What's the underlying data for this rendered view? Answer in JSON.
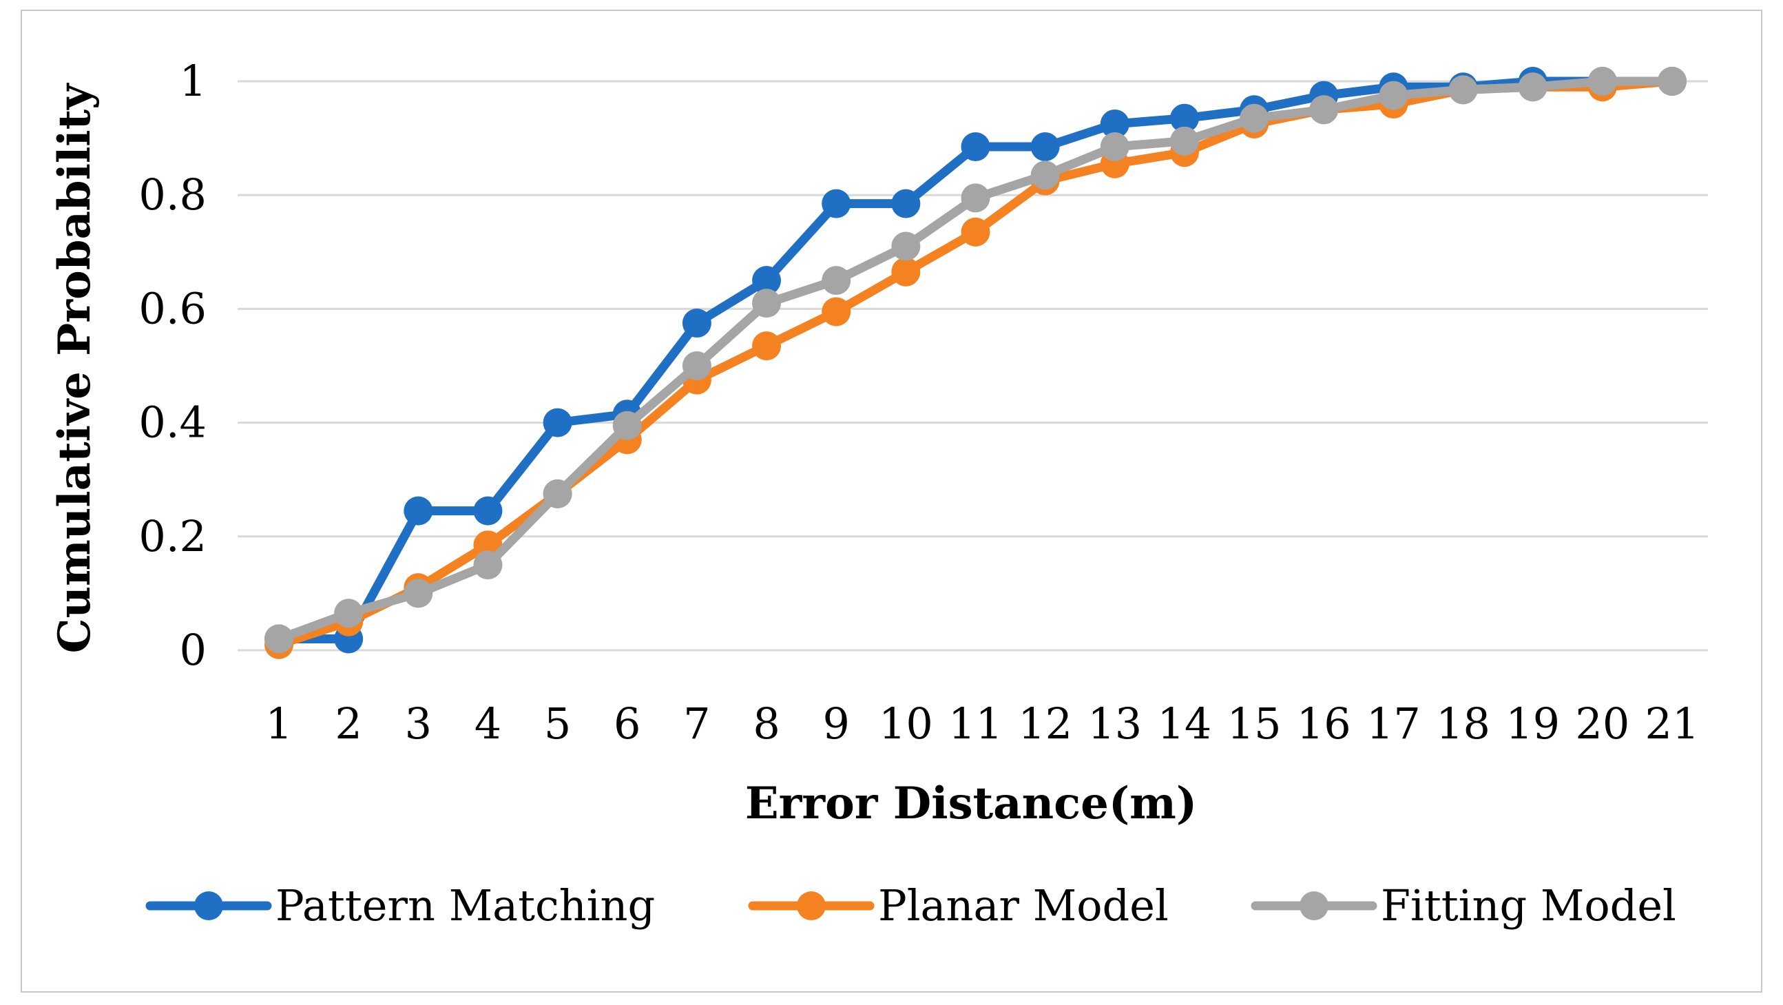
{
  "chart_data": {
    "type": "line",
    "title": "",
    "xlabel": "Error Distance(m)",
    "ylabel": "Cumulative Probability",
    "categories": [
      "1",
      "2",
      "3",
      "4",
      "5",
      "6",
      "7",
      "8",
      "9",
      "10",
      "11",
      "12",
      "13",
      "14",
      "15",
      "16",
      "17",
      "18",
      "19",
      "20",
      "21"
    ],
    "yticks": [
      "0",
      "0.2",
      "0.4",
      "0.6",
      "0.8",
      "1"
    ],
    "ylim": [
      0,
      1
    ],
    "grid": true,
    "legend_position": "bottom",
    "series": [
      {
        "name": "Pattern Matching",
        "color": "#1F6FC5",
        "values": [
          0.02,
          0.02,
          0.245,
          0.245,
          0.4,
          0.415,
          0.575,
          0.65,
          0.785,
          0.785,
          0.885,
          0.885,
          0.925,
          0.935,
          0.95,
          0.975,
          0.99,
          0.99,
          1.0,
          1.0,
          1.0
        ]
      },
      {
        "name": "Planar Model",
        "color": "#F58220",
        "values": [
          0.01,
          0.05,
          0.11,
          0.185,
          0.275,
          0.37,
          0.475,
          0.535,
          0.595,
          0.665,
          0.735,
          0.825,
          0.855,
          0.875,
          0.925,
          0.95,
          0.96,
          0.985,
          0.99,
          0.99,
          1.0
        ]
      },
      {
        "name": "Fitting Model",
        "color": "#A5A5A5",
        "values": [
          0.02,
          0.065,
          0.1,
          0.15,
          0.275,
          0.395,
          0.5,
          0.61,
          0.65,
          0.71,
          0.795,
          0.835,
          0.885,
          0.895,
          0.935,
          0.95,
          0.975,
          0.985,
          0.99,
          1.0,
          1.0
        ]
      }
    ]
  }
}
